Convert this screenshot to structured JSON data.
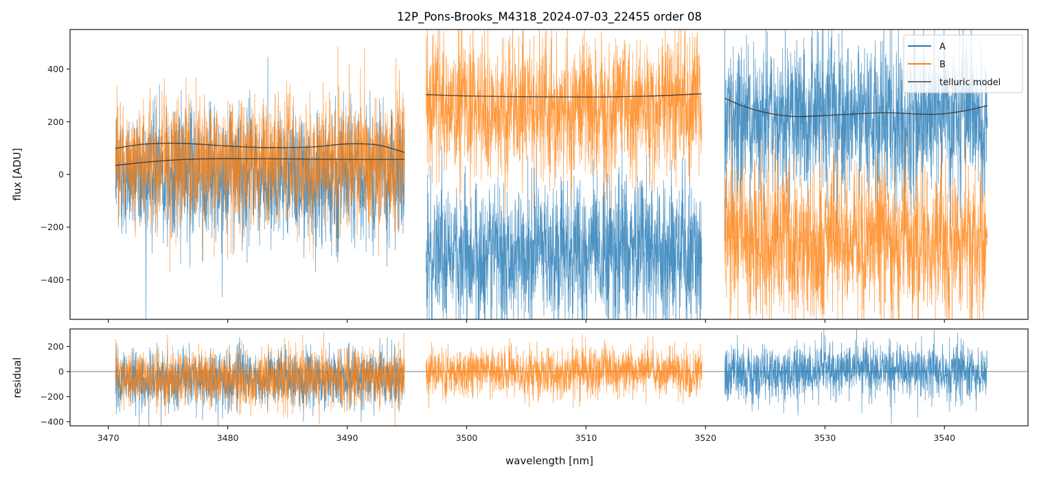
{
  "chart_data": [
    {
      "type": "line",
      "panel": "flux",
      "title": "12P_Pons-Brooks_M4318_2024-07-03_22455  order 08",
      "xlabel": "",
      "ylabel": "flux [ADU]",
      "xlim": [
        3466.8,
        3547.0
      ],
      "ylim": [
        -550,
        550
      ],
      "xticks": [
        3470,
        3480,
        3490,
        3500,
        3510,
        3520,
        3530,
        3540
      ],
      "yticks": [
        -400,
        -200,
        0,
        200,
        400
      ],
      "ytick_labels": [
        "−400",
        "−200",
        "0",
        "200",
        "400"
      ],
      "grid": false,
      "legend": {
        "placement": "top-right",
        "entries": [
          {
            "label": "A",
            "color": "#1f77b4"
          },
          {
            "label": "B",
            "color": "#ff7f0e"
          },
          {
            "label": "telluric model",
            "color": "#333333"
          }
        ]
      },
      "series": [
        {
          "name": "A",
          "color": "#1f77b4",
          "segments": [
            {
              "x_range": [
                3470.6,
                3494.8
              ],
              "mean": 0,
              "noise_sigma": 120
            },
            {
              "x_range": [
                3496.6,
                3519.7
              ],
              "mean": -300,
              "noise_sigma": 130
            },
            {
              "x_range": [
                3521.6,
                3543.6
              ],
              "mean": 220,
              "noise_sigma": 140
            }
          ]
        },
        {
          "name": "B",
          "color": "#ff7f0e",
          "segments": [
            {
              "x_range": [
                3470.6,
                3494.8
              ],
              "mean": 50,
              "noise_sigma": 120
            },
            {
              "x_range": [
                3496.6,
                3519.7
              ],
              "mean": 260,
              "noise_sigma": 130
            },
            {
              "x_range": [
                3521.6,
                3543.6
              ],
              "mean": -250,
              "noise_sigma": 140
            }
          ]
        },
        {
          "name": "telluric model",
          "color": "#333333",
          "curves": [
            {
              "x": [
                3470.6,
                3473.0,
                3476.0,
                3480.0,
                3483.0,
                3487.0,
                3490.0,
                3492.5,
                3494.8
              ],
              "y": [
                99,
                115,
                118,
                108,
                102,
                104,
                116,
                112,
                84
              ]
            },
            {
              "x": [
                3470.6,
                3473.5,
                3476.5,
                3480.0,
                3485.0,
                3490.0,
                3494.8
              ],
              "y": [
                34,
                48,
                57,
                60,
                59,
                57,
                57
              ]
            },
            {
              "x": [
                3496.6,
                3500.0,
                3505.0,
                3510.0,
                3515.0,
                3519.7
              ],
              "y": [
                303,
                298,
                295,
                294,
                297,
                306
              ]
            },
            {
              "x": [
                3521.6,
                3523.0,
                3525.0,
                3527.5,
                3531.0,
                3535.0,
                3539.0,
                3541.5,
                3543.6
              ],
              "y": [
                290,
                262,
                235,
                220,
                226,
                234,
                228,
                240,
                261
              ]
            }
          ]
        }
      ]
    },
    {
      "type": "line",
      "panel": "residual",
      "title": "",
      "xlabel": "wavelength [nm]",
      "ylabel": "residual",
      "xlim": [
        3466.8,
        3547.0
      ],
      "ylim": [
        -433,
        340
      ],
      "xticks": [
        3470,
        3480,
        3490,
        3500,
        3510,
        3520,
        3530,
        3540
      ],
      "xtick_labels": [
        "3470",
        "3480",
        "3490",
        "3500",
        "3510",
        "3520",
        "3530",
        "3540"
      ],
      "yticks": [
        -400,
        -200,
        0,
        200
      ],
      "ytick_labels": [
        "−400",
        "−200",
        "0",
        "200"
      ],
      "grid": false,
      "zero_line": 0,
      "series": [
        {
          "name": "A",
          "color": "#1f77b4",
          "segments": [
            {
              "x_range": [
                3470.6,
                3494.8
              ],
              "mean": -60,
              "noise_sigma": 110
            },
            {
              "x_range": [
                3521.6,
                3543.6
              ],
              "mean": 0,
              "noise_sigma": 110
            }
          ]
        },
        {
          "name": "B",
          "color": "#ff7f0e",
          "segments": [
            {
              "x_range": [
                3470.6,
                3494.8
              ],
              "mean": -50,
              "noise_sigma": 110
            },
            {
              "x_range": [
                3496.6,
                3519.7
              ],
              "mean": 0,
              "noise_sigma": 95
            }
          ]
        }
      ]
    }
  ]
}
